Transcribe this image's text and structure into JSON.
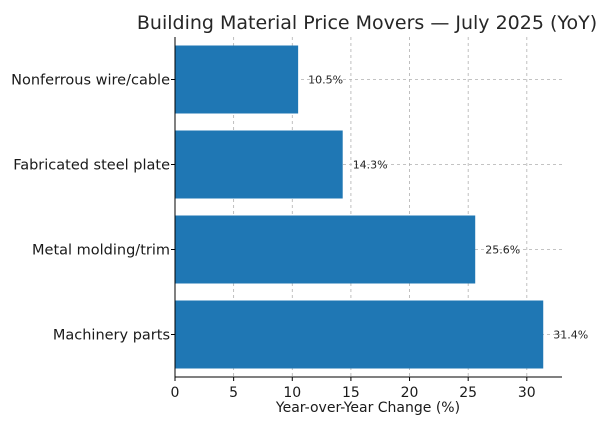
{
  "chart_data": {
    "type": "bar",
    "orientation": "horizontal",
    "title": "Building Material Price Movers — July 2025 (YoY)",
    "xlabel": "Year-over-Year Change (%)",
    "ylabel": "",
    "categories": [
      "Machinery parts",
      "Metal molding/trim",
      "Fabricated steel plate",
      "Nonferrous wire/cable"
    ],
    "values": [
      31.4,
      25.6,
      14.3,
      10.5
    ],
    "data_labels": [
      "31.4%",
      "25.6%",
      "14.3%",
      "10.5%"
    ],
    "xlim": [
      0,
      33
    ],
    "xticks": [
      0,
      5,
      10,
      15,
      20,
      25,
      30
    ],
    "grid": true,
    "bar_color": "#1f77b4"
  }
}
